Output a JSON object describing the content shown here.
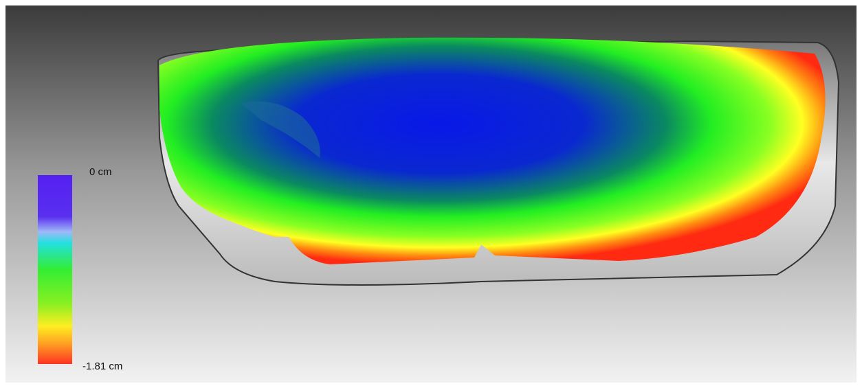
{
  "legend": {
    "top_label": "0 cm",
    "bottom_label": "-1.81 cm"
  }
}
